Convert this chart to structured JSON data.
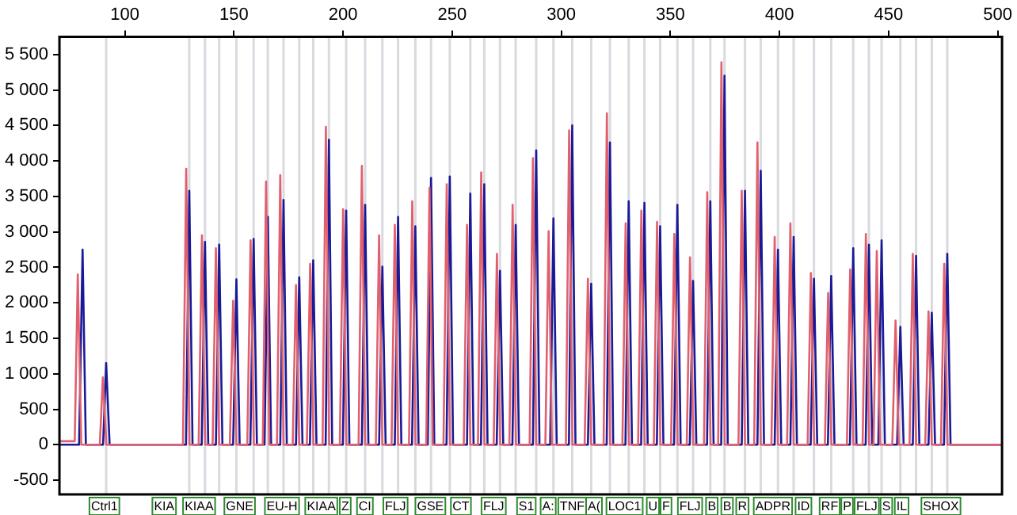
{
  "chart_data": {
    "type": "line",
    "xlim": [
      70,
      502
    ],
    "xticks": [
      100,
      150,
      200,
      250,
      300,
      350,
      400,
      450,
      500
    ],
    "ylim": [
      -700,
      5750
    ],
    "yticks": [
      -500,
      0,
      500,
      {
        "value": 1000,
        "label": "1 000"
      },
      {
        "value": 1500,
        "label": "1 500"
      },
      {
        "value": 2000,
        "label": "2 000"
      },
      {
        "value": 2500,
        "label": "2 500"
      },
      {
        "value": 3000,
        "label": "3 000"
      },
      {
        "value": 3500,
        "label": "3 500"
      },
      {
        "value": 4000,
        "label": "4 000"
      },
      {
        "value": 4500,
        "label": "4 500"
      },
      {
        "value": 5000,
        "label": "5 000"
      },
      {
        "value": 5500,
        "label": "5 500"
      }
    ],
    "grid": false,
    "legend": false,
    "series": [
      {
        "color": "#e0606e",
        "x": [
          70,
          77,
          78.4,
          80,
          88.5,
          89.9,
          91.5,
          126.6,
          128.1,
          129.6,
          133.8,
          135.3,
          136.8,
          140.2,
          141.7,
          143.2,
          148.1,
          149.6,
          151.1,
          156.1,
          157.6,
          159.1,
          163.2,
          164.7,
          166.2,
          169.7,
          171.2,
          172.7,
          176.9,
          178.4,
          179.9,
          183.4,
          184.9,
          186.4,
          190.6,
          192.1,
          193.6,
          198.5,
          200,
          201.5,
          207.1,
          208.6,
          210.1,
          215,
          216.5,
          218,
          222.2,
          223.7,
          225.2,
          230.2,
          231.7,
          233.2,
          238.1,
          239.6,
          241.1,
          246,
          247.5,
          249,
          255.3,
          256.8,
          258.3,
          261.8,
          263.3,
          264.8,
          269,
          270.5,
          272,
          276.2,
          277.7,
          279.2,
          285.5,
          287,
          288.5,
          292.7,
          294.2,
          295.7,
          302.1,
          303.6,
          305.1,
          310.7,
          312.2,
          313.7,
          319.4,
          320.9,
          322.4,
          328,
          329.5,
          331,
          335.2,
          336.7,
          338.2,
          342.4,
          343.9,
          345.4,
          350.3,
          351.8,
          353.3,
          357.5,
          359,
          360.5,
          365.4,
          366.9,
          368.4,
          371.9,
          373.4,
          374.9,
          381.2,
          382.7,
          384.2,
          388.4,
          389.9,
          391.4,
          396.3,
          397.8,
          399.3,
          403.5,
          405,
          406.5,
          412.9,
          414.4,
          415.9,
          420.8,
          422.3,
          423.8,
          430.9,
          432.4,
          433.9,
          438.1,
          439.6,
          441.1,
          443.1,
          444.6,
          446.1,
          451.7,
          453.2,
          454.7,
          459.6,
          461.1,
          462.6,
          466.8,
          468.3,
          469.8,
          474,
          475.5,
          477,
          502
        ],
        "values": [
          50,
          50,
          2400,
          0,
          0,
          950,
          0,
          0,
          3890,
          0,
          0,
          2950,
          0,
          0,
          2770,
          0,
          0,
          2030,
          0,
          0,
          2880,
          0,
          0,
          3710,
          0,
          0,
          3800,
          0,
          0,
          2250,
          0,
          0,
          2550,
          0,
          0,
          4480,
          0,
          0,
          3320,
          0,
          0,
          3930,
          0,
          0,
          2950,
          0,
          0,
          3100,
          0,
          0,
          3430,
          0,
          0,
          3620,
          0,
          0,
          3670,
          0,
          0,
          3100,
          0,
          0,
          3840,
          0,
          0,
          2690,
          0,
          0,
          3380,
          0,
          0,
          4040,
          0,
          0,
          3010,
          0,
          0,
          4430,
          0,
          0,
          2340,
          0,
          0,
          4670,
          0,
          0,
          3120,
          0,
          0,
          3300,
          0,
          0,
          3140,
          0,
          0,
          2970,
          0,
          0,
          2640,
          0,
          0,
          3560,
          0,
          0,
          5390,
          0,
          0,
          3580,
          0,
          0,
          4260,
          0,
          0,
          2930,
          0,
          0,
          3120,
          0,
          0,
          2420,
          0,
          0,
          2140,
          0,
          0,
          2470,
          0,
          0,
          2970,
          0,
          0,
          2730,
          0,
          0,
          1750,
          0,
          0,
          2690,
          0,
          0,
          1880,
          0,
          0,
          2550,
          0,
          0
        ]
      },
      {
        "color": "#1a1a96",
        "x": [
          70,
          79,
          80.6,
          82.1,
          90,
          91.4,
          93,
          128,
          129.5,
          131,
          135.2,
          136.7,
          138.2,
          141.7,
          143.2,
          144.7,
          149.6,
          151.1,
          152.6,
          157.5,
          159,
          160.5,
          164,
          165.5,
          167,
          171.2,
          172.7,
          174.2,
          178.4,
          179.9,
          181.4,
          184.8,
          186.3,
          187.8,
          192,
          193.5,
          195,
          199.9,
          201.4,
          202.9,
          208.6,
          210.1,
          211.6,
          216.5,
          218,
          219.5,
          223.7,
          225.2,
          226.7,
          231.6,
          233.1,
          234.6,
          238.8,
          240.3,
          241.8,
          247.4,
          248.9,
          250.4,
          256.8,
          258.3,
          259.8,
          263.2,
          264.7,
          266.2,
          270.4,
          271.9,
          273.4,
          277.6,
          279.1,
          280.6,
          287,
          288.5,
          290,
          294.9,
          296.4,
          297.9,
          303.5,
          305,
          306.5,
          312.2,
          313.7,
          315.2,
          320.8,
          322.3,
          323.8,
          329.4,
          330.9,
          332.4,
          336.6,
          338.1,
          339.6,
          343.8,
          345.3,
          346.8,
          351.7,
          353.2,
          354.7,
          358.9,
          360.4,
          361.9,
          366.8,
          368.3,
          369.8,
          373.3,
          374.8,
          376.3,
          382.7,
          384.2,
          385.7,
          389.9,
          391.4,
          392.9,
          397.8,
          399.3,
          400.8,
          405,
          406.5,
          408,
          414.3,
          415.8,
          417.3,
          422.2,
          423.7,
          425.2,
          432.3,
          433.8,
          435.3,
          439.5,
          441,
          442.5,
          445.3,
          446.8,
          448.3,
          453.9,
          455.4,
          456.9,
          461.1,
          462.6,
          464.1,
          468.3,
          469.8,
          471.3,
          475.4,
          476.9,
          478.4,
          502
        ],
        "values": [
          0,
          0,
          2750,
          0,
          0,
          1150,
          0,
          0,
          3580,
          0,
          0,
          2860,
          0,
          0,
          2820,
          0,
          0,
          2330,
          0,
          0,
          2900,
          0,
          0,
          3210,
          0,
          0,
          3450,
          0,
          0,
          2360,
          0,
          0,
          2600,
          0,
          0,
          4300,
          0,
          0,
          3300,
          0,
          0,
          3380,
          0,
          0,
          2510,
          0,
          0,
          3210,
          0,
          0,
          3080,
          0,
          0,
          3760,
          0,
          0,
          3780,
          0,
          0,
          3540,
          0,
          0,
          3670,
          0,
          0,
          2450,
          0,
          0,
          3100,
          0,
          0,
          4150,
          0,
          0,
          3190,
          0,
          0,
          4500,
          0,
          0,
          2270,
          0,
          0,
          4260,
          0,
          0,
          3430,
          0,
          0,
          3410,
          0,
          0,
          3080,
          0,
          0,
          3380,
          0,
          0,
          2310,
          0,
          0,
          3430,
          0,
          0,
          5200,
          0,
          0,
          3580,
          0,
          0,
          3860,
          0,
          0,
          2750,
          0,
          0,
          2930,
          0,
          0,
          2340,
          0,
          0,
          2380,
          0,
          0,
          2770,
          0,
          0,
          2820,
          0,
          0,
          2880,
          0,
          0,
          1660,
          0,
          0,
          2660,
          0,
          0,
          1860,
          0,
          0,
          2690,
          0,
          0
        ]
      }
    ],
    "ref_lines": [
      {
        "axis": "x",
        "value": 91.4,
        "color": "#d9d9e0"
      },
      {
        "axis": "x",
        "value": 129.5,
        "color": "#d9d9e0"
      },
      {
        "axis": "x",
        "value": 136.7,
        "color": "#d9d9e0"
      },
      {
        "axis": "x",
        "value": 143.2,
        "color": "#d9d9e0"
      },
      {
        "axis": "x",
        "value": 151.1,
        "color": "#d9d9e0"
      },
      {
        "axis": "x",
        "value": 159,
        "color": "#d9d9e0"
      },
      {
        "axis": "x",
        "value": 165.5,
        "color": "#d9d9e0"
      },
      {
        "axis": "x",
        "value": 172.7,
        "color": "#d9d9e0"
      },
      {
        "axis": "x",
        "value": 179.9,
        "color": "#d9d9e0"
      },
      {
        "axis": "x",
        "value": 186.3,
        "color": "#d9d9e0"
      },
      {
        "axis": "x",
        "value": 193.5,
        "color": "#d9d9e0"
      },
      {
        "axis": "x",
        "value": 201.4,
        "color": "#d9d9e0"
      },
      {
        "axis": "x",
        "value": 210.1,
        "color": "#d9d9e0"
      },
      {
        "axis": "x",
        "value": 218,
        "color": "#d9d9e0"
      },
      {
        "axis": "x",
        "value": 225.2,
        "color": "#d9d9e0"
      },
      {
        "axis": "x",
        "value": 233.1,
        "color": "#d9d9e0"
      },
      {
        "axis": "x",
        "value": 240.3,
        "color": "#d9d9e0"
      },
      {
        "axis": "x",
        "value": 248.9,
        "color": "#d9d9e0"
      },
      {
        "axis": "x",
        "value": 258.3,
        "color": "#d9d9e0"
      },
      {
        "axis": "x",
        "value": 264.7,
        "color": "#d9d9e0"
      },
      {
        "axis": "x",
        "value": 271.9,
        "color": "#d9d9e0"
      },
      {
        "axis": "x",
        "value": 279.1,
        "color": "#d9d9e0"
      },
      {
        "axis": "x",
        "value": 288.5,
        "color": "#d9d9e0"
      },
      {
        "axis": "x",
        "value": 296.4,
        "color": "#d9d9e0"
      },
      {
        "axis": "x",
        "value": 305,
        "color": "#d9d9e0"
      },
      {
        "axis": "x",
        "value": 313.7,
        "color": "#d9d9e0"
      },
      {
        "axis": "x",
        "value": 322.3,
        "color": "#d9d9e0"
      },
      {
        "axis": "x",
        "value": 330.9,
        "color": "#d9d9e0"
      },
      {
        "axis": "x",
        "value": 338.1,
        "color": "#d9d9e0"
      },
      {
        "axis": "x",
        "value": 345.3,
        "color": "#d9d9e0"
      },
      {
        "axis": "x",
        "value": 353.2,
        "color": "#d9d9e0"
      },
      {
        "axis": "x",
        "value": 360.4,
        "color": "#d9d9e0"
      },
      {
        "axis": "x",
        "value": 368.3,
        "color": "#d9d9e0"
      },
      {
        "axis": "x",
        "value": 374.8,
        "color": "#d9d9e0"
      },
      {
        "axis": "x",
        "value": 384.2,
        "color": "#d9d9e0"
      },
      {
        "axis": "x",
        "value": 391.4,
        "color": "#d9d9e0"
      },
      {
        "axis": "x",
        "value": 399.3,
        "color": "#d9d9e0"
      },
      {
        "axis": "x",
        "value": 406.5,
        "color": "#d9d9e0"
      },
      {
        "axis": "x",
        "value": 415.8,
        "color": "#d9d9e0"
      },
      {
        "axis": "x",
        "value": 423.7,
        "color": "#d9d9e0"
      },
      {
        "axis": "x",
        "value": 433.8,
        "color": "#d9d9e0"
      },
      {
        "axis": "x",
        "value": 441,
        "color": "#d9d9e0"
      },
      {
        "axis": "x",
        "value": 446.8,
        "color": "#d9d9e0"
      },
      {
        "axis": "x",
        "value": 455.4,
        "color": "#d9d9e0"
      },
      {
        "axis": "x",
        "value": 462.6,
        "color": "#d9d9e0"
      },
      {
        "axis": "x",
        "value": 469.8,
        "color": "#d9d9e0"
      },
      {
        "axis": "x",
        "value": 476.9,
        "color": "#d9d9e0"
      }
    ],
    "annotations": [
      {
        "text": "Ctrl1",
        "x": 90.6
      },
      {
        "text": "KIA",
        "x": 118
      },
      {
        "text": "KIAA",
        "x": 134
      },
      {
        "text": "GNE",
        "x": 152.6
      },
      {
        "text": "EU-H",
        "x": 172
      },
      {
        "text": "KIAA",
        "x": 190
      },
      {
        "text": "Z",
        "x": 201
      },
      {
        "text": "CI",
        "x": 210
      },
      {
        "text": "FLJ",
        "x": 224
      },
      {
        "text": "GSE",
        "x": 240
      },
      {
        "text": "CT",
        "x": 254
      },
      {
        "text": "FLJ",
        "x": 269
      },
      {
        "text": "S1",
        "x": 284
      },
      {
        "text": "A:",
        "x": 294
      },
      {
        "text": "TNF",
        "x": 305
      },
      {
        "text": "A(",
        "x": 315
      },
      {
        "text": "LOC1",
        "x": 329
      },
      {
        "text": "U",
        "x": 342
      },
      {
        "text": "F",
        "x": 348
      },
      {
        "text": "FLJ",
        "x": 359
      },
      {
        "text": "B",
        "x": 369
      },
      {
        "text": "B",
        "x": 376
      },
      {
        "text": "R",
        "x": 383
      },
      {
        "text": "ADPR",
        "x": 397
      },
      {
        "text": "ID",
        "x": 411
      },
      {
        "text": "RF",
        "x": 423
      },
      {
        "text": "P",
        "x": 431
      },
      {
        "text": "FLJ",
        "x": 440
      },
      {
        "text": "S",
        "x": 449
      },
      {
        "text": "IL",
        "x": 456
      },
      {
        "text": "SHOX",
        "x": 474
      }
    ]
  }
}
